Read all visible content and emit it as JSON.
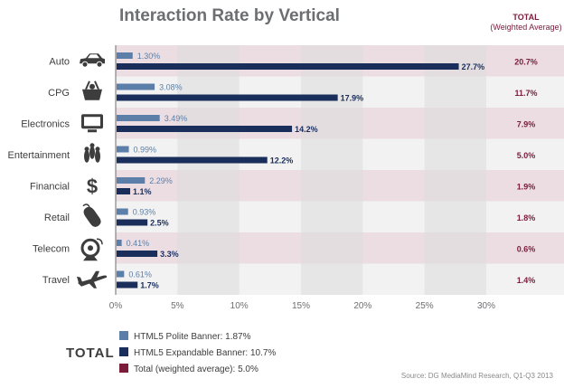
{
  "chart_data": {
    "type": "bar",
    "orientation": "horizontal",
    "title": "Interaction Rate by Vertical",
    "categories": [
      "Auto",
      "CPG",
      "Electronics",
      "Entertainment",
      "Financial",
      "Retail",
      "Telecom",
      "Travel"
    ],
    "icons": [
      "car-icon",
      "shopping-basket-icon",
      "monitor-icon",
      "bowling-pins-icon",
      "dollar-icon",
      "computer-mouse-icon",
      "satellite-dish-icon",
      "airplane-icon"
    ],
    "series": [
      {
        "name": "HTML5 Polite Banner",
        "color": "#5b7fa8",
        "values": [
          1.3,
          3.08,
          3.49,
          0.99,
          2.29,
          0.93,
          0.41,
          0.61
        ],
        "labels": [
          "1.30%",
          "3.08%",
          "3.49%",
          "0.99%",
          "2.29%",
          "0.93%",
          "0.41%",
          "0.61%"
        ]
      },
      {
        "name": "HTML5 Expandable Banner",
        "color": "#1a2e5c",
        "values": [
          27.7,
          17.9,
          14.2,
          12.2,
          1.1,
          2.5,
          3.3,
          1.7
        ],
        "labels": [
          "27.7%",
          "17.9%",
          "14.2%",
          "12.2%",
          "1.1%",
          "2.5%",
          "3.3%",
          "1.7%"
        ]
      }
    ],
    "total": {
      "header": "TOTAL",
      "subheader": "(Weighted Average)",
      "color": "#7b1c3b",
      "values": [
        20.7,
        11.7,
        7.9,
        5.0,
        1.9,
        1.8,
        0.6,
        1.4
      ],
      "labels": [
        "20.7%",
        "11.7%",
        "7.9%",
        "5.0%",
        "1.9%",
        "1.8%",
        "0.6%",
        "1.4%"
      ]
    },
    "xlim": [
      0,
      30
    ],
    "xticks": [
      0,
      5,
      10,
      15,
      20,
      25,
      30
    ],
    "xtick_labels": [
      "0%",
      "5%",
      "10%",
      "15%",
      "20%",
      "25%",
      "30%"
    ],
    "row_band_colors": [
      "#ecdde2",
      "#f2f2f2"
    ],
    "column_band_color": "#dcdcdc",
    "legend": {
      "heading": "TOTAL",
      "items": [
        {
          "label": "HTML5 Polite Banner: 1.87%",
          "color": "#5b7fa8"
        },
        {
          "label": "HTML5 Expandable Banner: 10.7%",
          "color": "#1a2e5c"
        },
        {
          "label": "Total (weighted average): 5.0%",
          "color": "#7b1c3b"
        }
      ]
    },
    "source": "Source: DG MediaMind Research, Q1-Q3 2013"
  }
}
